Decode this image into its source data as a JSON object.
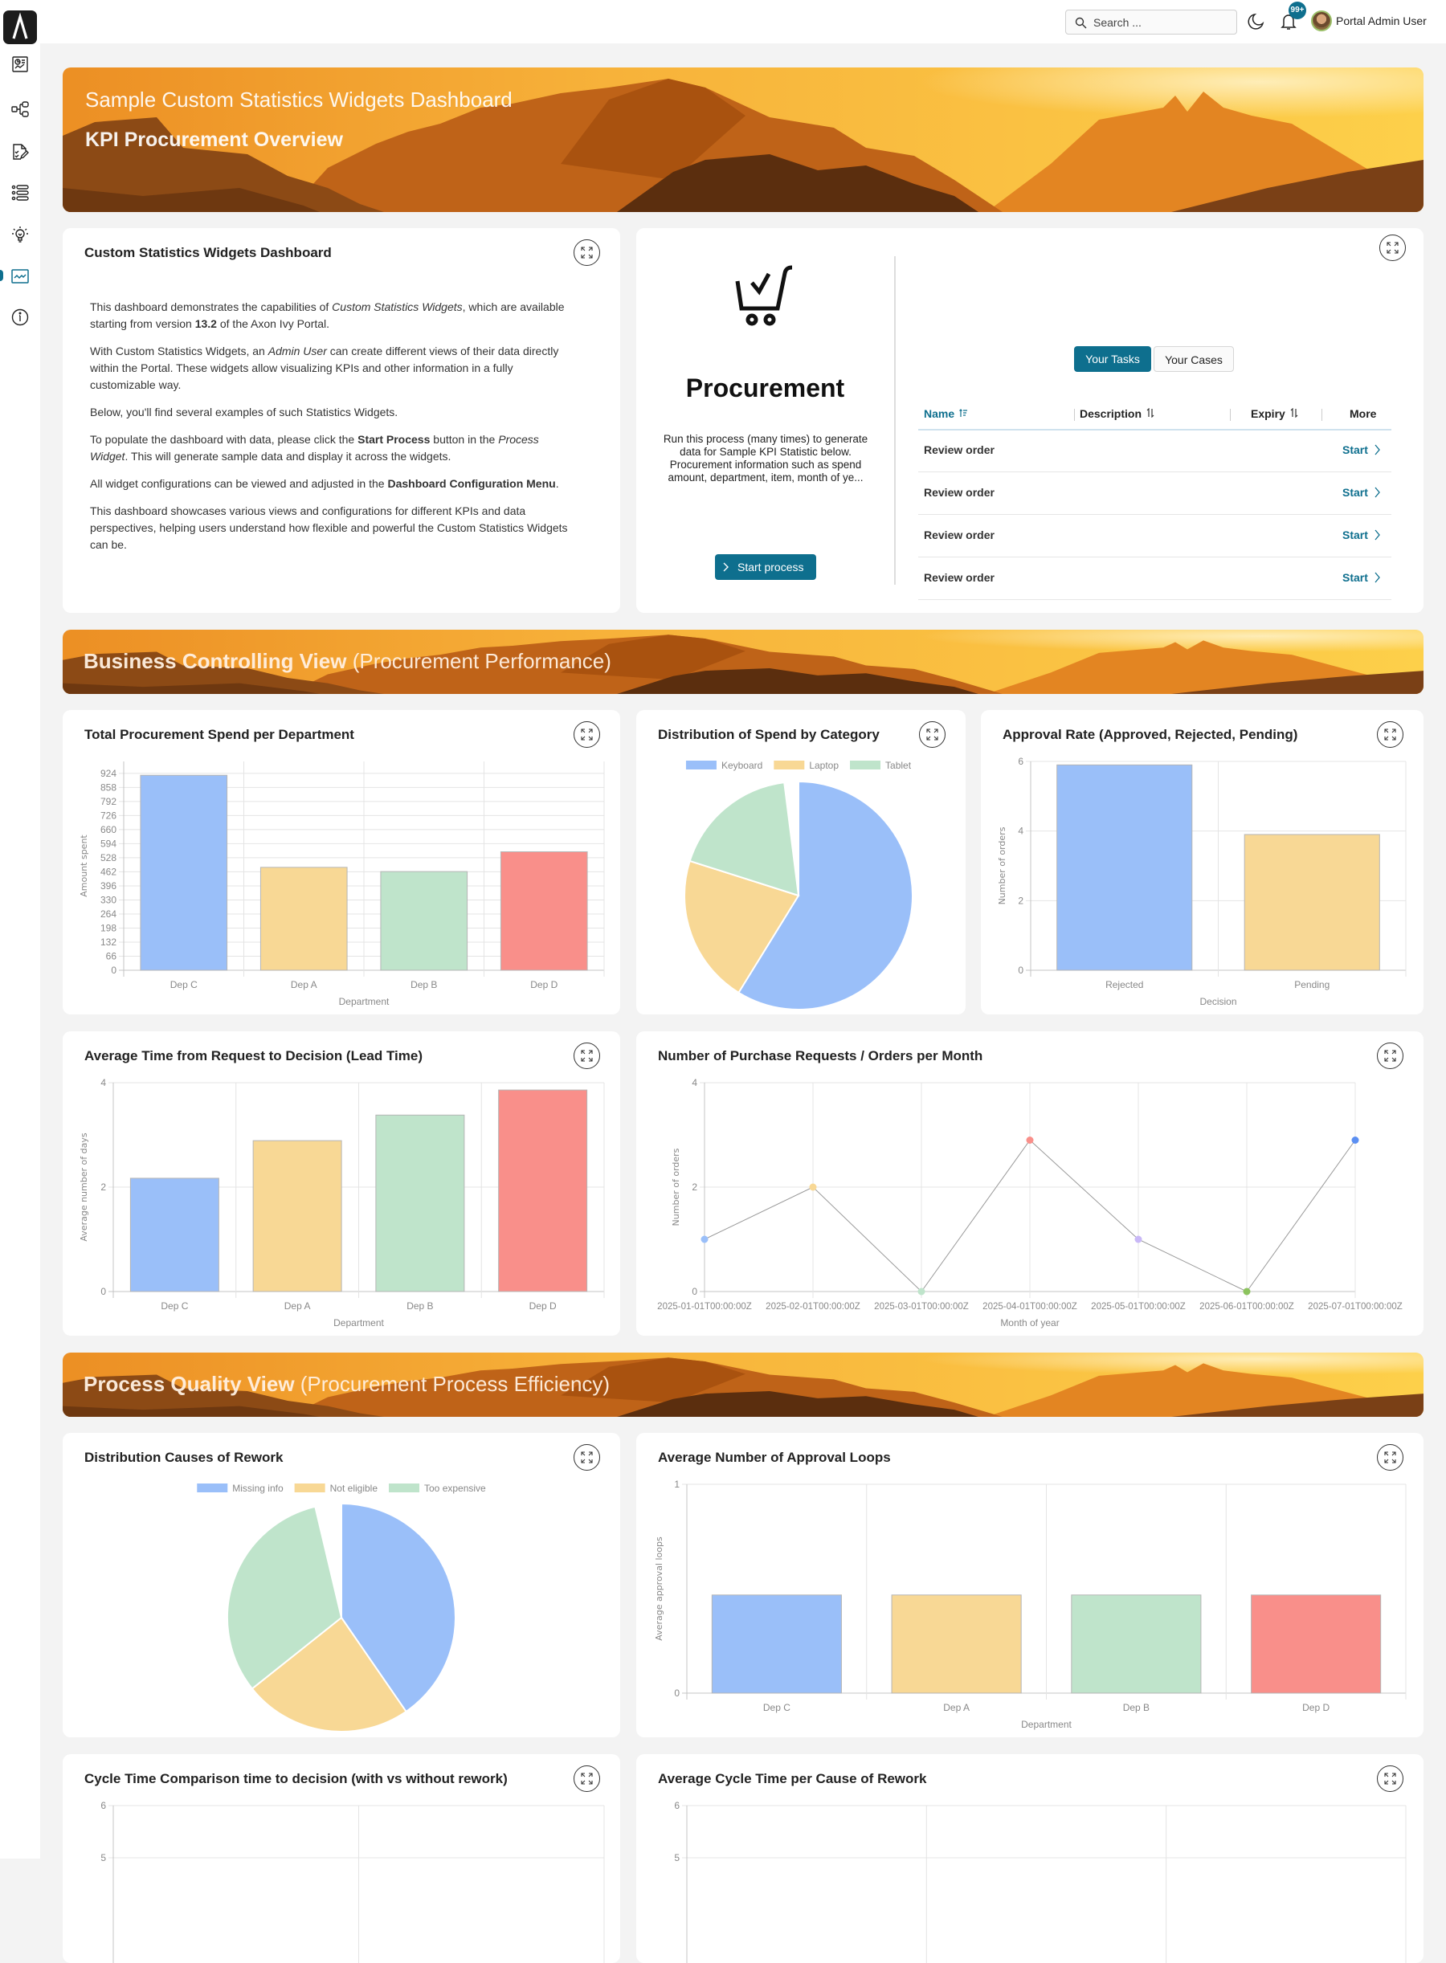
{
  "topbar": {
    "search_placeholder": "Search ...",
    "notifications_badge": "99+",
    "user_name": "Portal Admin User"
  },
  "sidebar": {
    "items": [
      {
        "icon": "dashboard-icon"
      },
      {
        "icon": "process-icon"
      },
      {
        "icon": "task-icon"
      },
      {
        "icon": "case-list-icon"
      },
      {
        "icon": "idea-icon"
      },
      {
        "icon": "statistics-icon",
        "active": true
      },
      {
        "icon": "info-icon"
      }
    ]
  },
  "header_banner": {
    "title": "Sample Custom Statistics Widgets Dashboard",
    "subtitle": "KPI Procurement Overview"
  },
  "intro_card": {
    "title": "Custom Statistics Widgets Dashboard",
    "paragraphs": [
      [
        {
          "text": "This dashboard demonstrates the capabilities of "
        },
        {
          "text": "Custom Statistics Widgets",
          "style": "i"
        },
        {
          "text": ", which are available starting from version "
        },
        {
          "text": "13.2",
          "style": "b"
        },
        {
          "text": " of the Axon Ivy Portal."
        }
      ],
      [
        {
          "text": "With Custom Statistics Widgets, an "
        },
        {
          "text": "Admin User",
          "style": "i"
        },
        {
          "text": " can create different views of their data directly within the Portal. These widgets allow visualizing KPIs and other information in a fully customizable way."
        }
      ],
      [
        {
          "text": "Below, you'll find several examples of such Statistics Widgets."
        }
      ],
      [
        {
          "text": "To populate the dashboard with data, please click the "
        },
        {
          "text": "Start Process",
          "style": "b"
        },
        {
          "text": " button in the "
        },
        {
          "text": "Process Widget",
          "style": "i"
        },
        {
          "text": ". This will generate sample data and display it across the widgets."
        }
      ],
      [
        {
          "text": "All widget configurations can be viewed and adjusted in the "
        },
        {
          "text": "Dashboard Configuration Menu",
          "style": "b"
        },
        {
          "text": "."
        }
      ],
      [
        {
          "text": "This dashboard showcases various views and configurations for different KPIs and data perspectives, helping users understand how flexible and powerful the Custom Statistics Widgets can be."
        }
      ]
    ]
  },
  "process_card": {
    "name": "Procurement",
    "description": "Run this process (many times) to generate data for Sample KPI Statistic below. Procurement information such as spend amount, department, item, month of ye...",
    "start_button": "Start process",
    "tabs": [
      {
        "label": "Your Tasks",
        "active": true
      },
      {
        "label": "Your Cases",
        "active": false
      }
    ],
    "table": {
      "columns": [
        "Name",
        "Description",
        "Expiry",
        "More"
      ],
      "sorted_column": "Name",
      "rows": [
        {
          "name": "Review order",
          "action": "Start"
        },
        {
          "name": "Review order",
          "action": "Start"
        },
        {
          "name": "Review order",
          "action": "Start"
        },
        {
          "name": "Review order",
          "action": "Start"
        }
      ]
    }
  },
  "sections": [
    {
      "bold": "Business Controlling View",
      "light": " (Procurement Performance)"
    },
    {
      "bold": "Process Quality View",
      "light": " (Procurement Process Efficiency)"
    }
  ],
  "colors": {
    "accent": "#0e6f8e",
    "blue": "#9abff9",
    "yellow": "#f8d895",
    "green": "#bfe4cb",
    "red": "#f98f8a"
  },
  "chart_data": [
    {
      "type": "bar",
      "title": "Total Procurement Spend per Department",
      "categories": [
        "Dep C",
        "Dep A",
        "Dep B",
        "Dep D"
      ],
      "values": [
        915,
        483,
        463,
        556
      ],
      "colors": [
        "#9abff9",
        "#f8d895",
        "#bfe4cb",
        "#f98f8a"
      ],
      "xlabel": "Department",
      "ylabel": "Amount spent",
      "ylim": [
        0,
        980
      ],
      "yticks": [
        0,
        66,
        132,
        198,
        264,
        330,
        396,
        462,
        528,
        594,
        660,
        726,
        792,
        858,
        924
      ],
      "grid": true
    },
    {
      "type": "pie",
      "title": "Distribution of Spend by Category",
      "labels": [
        "Keyboard",
        "Laptop",
        "Tablet"
      ],
      "values_percent": [
        58.8,
        21.1,
        18.1
      ],
      "colors": [
        "#9abff9",
        "#f8d895",
        "#bfe4cb"
      ],
      "legend": "top"
    },
    {
      "type": "bar",
      "title": "Approval Rate (Approved, Rejected, Pending)",
      "categories": [
        "Rejected",
        "Pending"
      ],
      "values": [
        5.9,
        3.9
      ],
      "colors": [
        "#9abff9",
        "#f8d895"
      ],
      "xlabel": "Decision",
      "ylabel": "Number of orders",
      "ylim": [
        0,
        6
      ],
      "yticks": [
        0,
        2,
        4,
        6
      ],
      "grid": true
    },
    {
      "type": "bar",
      "title": "Average Time from Request to Decision (Lead Time)",
      "categories": [
        "Dep C",
        "Dep A",
        "Dep B",
        "Dep D"
      ],
      "values": [
        2.17,
        2.89,
        3.38,
        3.86
      ],
      "colors": [
        "#9abff9",
        "#f8d895",
        "#bfe4cb",
        "#f98f8a"
      ],
      "xlabel": "Department",
      "ylabel": "Average number of days",
      "ylim": [
        0,
        4
      ],
      "yticks": [
        0,
        2,
        4
      ],
      "grid": true
    },
    {
      "type": "line",
      "title": "Number of Purchase Requests / Orders per Month",
      "x": [
        "2025-01-01T00:00:00Z",
        "2025-02-01T00:00:00Z",
        "2025-03-01T00:00:00Z",
        "2025-04-01T00:00:00Z",
        "2025-05-01T00:00:00Z",
        "2025-06-01T00:00:00Z",
        "2025-07-01T00:00:00Z"
      ],
      "values": [
        1,
        2,
        0,
        2.9,
        1,
        0,
        2.9
      ],
      "point_colors": [
        "#9abff9",
        "#f8d895",
        "#bfe4cb",
        "#f98f8a",
        "#c9b8f7",
        "#8cc35e",
        "#5b8ff2"
      ],
      "line_color": "#999999",
      "xlabel": "Month of year",
      "ylabel": "Number of orders",
      "ylim": [
        0,
        4
      ],
      "yticks": [
        0,
        2,
        4
      ],
      "grid": true
    },
    {
      "type": "pie",
      "title": "Distribution Causes of Rework",
      "labels": [
        "Missing info",
        "Not eligible",
        "Too expensive"
      ],
      "values_percent": [
        40.4,
        23.9,
        32.0
      ],
      "colors": [
        "#9abff9",
        "#f8d895",
        "#bfe4cb"
      ],
      "legend": "top"
    },
    {
      "type": "bar",
      "title": "Average Number of Approval Loops",
      "categories": [
        "Dep C",
        "Dep A",
        "Dep B",
        "Dep D"
      ],
      "values": [
        0.47,
        0.47,
        0.47,
        0.47
      ],
      "colors": [
        "#9abff9",
        "#f8d895",
        "#bfe4cb",
        "#f98f8a"
      ],
      "xlabel": "Department",
      "ylabel": "Average approval loops",
      "ylim": [
        0,
        1
      ],
      "yticks": [
        0,
        1
      ],
      "grid": true
    },
    {
      "type": "bar",
      "title": "Cycle Time Comparison time to decision (with vs without rework)",
      "yticks": [
        5,
        6
      ],
      "grid": true
    },
    {
      "type": "bar",
      "title": "Average Cycle Time per Cause of Rework",
      "yticks": [
        5,
        6
      ],
      "grid": true
    }
  ]
}
